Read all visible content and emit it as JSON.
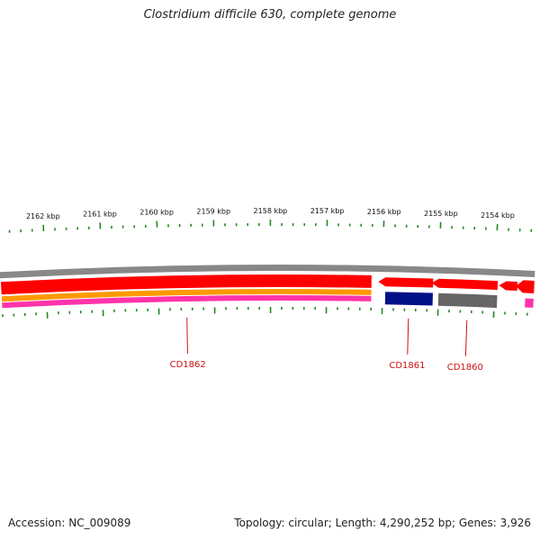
{
  "title": "Clostridium difficile 630, complete genome",
  "footer": {
    "accession": "Accession: NC_009089",
    "summary": "Topology: circular; Length: 4,290,252 bp; Genes: 3,926"
  },
  "map": {
    "kbp_labels": [
      {
        "kbp": 2162,
        "text": "2162 kbp"
      },
      {
        "kbp": 2161,
        "text": "2161 kbp"
      },
      {
        "kbp": 2160,
        "text": "2160 kbp"
      },
      {
        "kbp": 2159,
        "text": "2159 kbp"
      },
      {
        "kbp": 2158,
        "text": "2158 kbp"
      },
      {
        "kbp": 2157,
        "text": "2157 kbp"
      },
      {
        "kbp": 2156,
        "text": "2156 kbp"
      },
      {
        "kbp": 2155,
        "text": "2155 kbp"
      },
      {
        "kbp": 2154,
        "text": "2154 kbp"
      }
    ],
    "genes": [
      {
        "name": "CD1862",
        "start_kbp": 2162.8,
        "end_kbp": 2156.2
      },
      {
        "name": "CD1861",
        "start_kbp": 2155.95,
        "end_kbp": 2155.1
      },
      {
        "name": "CD1860",
        "start_kbp": 2155.0,
        "end_kbp": 2153.95
      }
    ],
    "colors": {
      "backbone": "#888888",
      "cds": "#ff0000",
      "gene": "#ff9900",
      "rna": "#ff33aa",
      "navy": "#001188",
      "grey": "#666666",
      "ticks": "#228822",
      "labels": "#cc1111"
    }
  }
}
